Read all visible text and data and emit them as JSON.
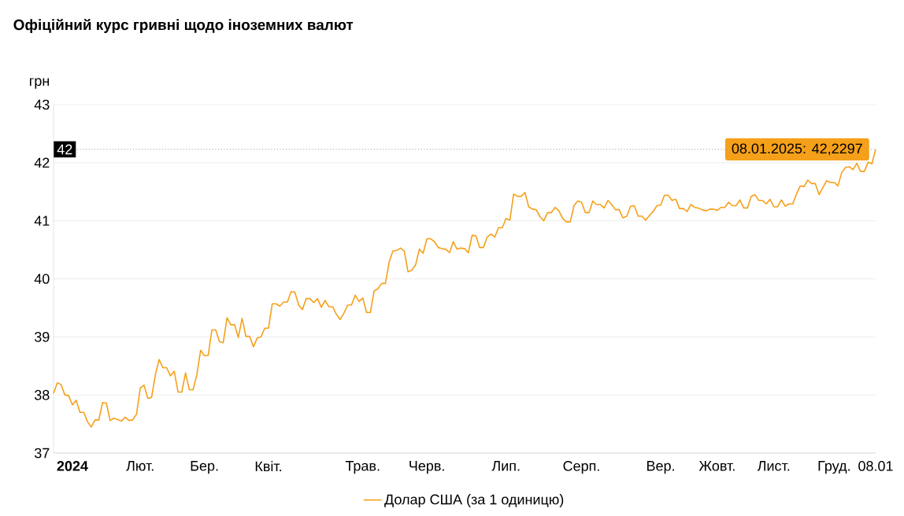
{
  "chart_data": {
    "type": "line",
    "title": "Офіційний курс гривні щодо іноземних валют",
    "ylabel": "грн",
    "ylim": [
      37,
      43
    ],
    "yticks": [
      37,
      38,
      39,
      40,
      41,
      42,
      43
    ],
    "grid": "y",
    "legend": "bottom",
    "categories": [
      null,
      null,
      null,
      null,
      null,
      "**2024**",
      null,
      null,
      null,
      null,
      null,
      null,
      null,
      null,
      null,
      null,
      null,
      null,
      null,
      null,
      null,
      null,
      null,
      "Лют.",
      null,
      null,
      null,
      null,
      null,
      null,
      null,
      null,
      null,
      null,
      null,
      null,
      null,
      null,
      null,
      null,
      "Бер.",
      null,
      null,
      null,
      null,
      null,
      null,
      null,
      null,
      null,
      null,
      null,
      null,
      null,
      null,
      null,
      null,
      "Квіт.",
      null,
      null,
      null,
      null,
      null,
      null,
      null,
      null,
      null,
      null,
      null,
      null,
      null,
      null,
      null,
      null,
      null,
      null,
      null,
      null,
      null,
      null,
      null,
      null,
      "Трав.",
      null,
      null,
      null,
      null,
      null,
      null,
      null,
      null,
      null,
      null,
      null,
      null,
      null,
      null,
      null,
      null,
      "Черв.",
      null,
      null,
      null,
      null,
      null,
      null,
      null,
      null,
      null,
      null,
      null,
      null,
      null,
      null,
      null,
      null,
      null,
      null,
      null,
      null,
      "Лип.",
      null,
      null,
      null,
      null,
      null,
      null,
      null,
      null,
      null,
      null,
      null,
      null,
      null,
      null,
      null,
      null,
      null,
      null,
      null,
      "Серп.",
      null,
      null,
      null,
      null,
      null,
      null,
      null,
      null,
      null,
      null,
      null,
      null,
      null,
      null,
      null,
      null,
      null,
      null,
      null,
      null,
      "Вер.",
      null,
      null,
      null,
      null,
      null,
      null,
      null,
      null,
      null,
      null,
      null,
      null,
      null,
      null,
      "Жовт.",
      null,
      null,
      null,
      null,
      null,
      null,
      null,
      null,
      null,
      null,
      null,
      null,
      null,
      null,
      "Лист.",
      null,
      null,
      null,
      null,
      null,
      null,
      null,
      null,
      null,
      null,
      null,
      null,
      null,
      null,
      null,
      "Груд.",
      null,
      null,
      null,
      null,
      null,
      null,
      null,
      null,
      null,
      null,
      "08.01"
    ],
    "series": [
      {
        "name": "Долар США (за 1 одиницю)",
        "color": "#f5a01a",
        "values": [
          38.03,
          38.21,
          38.18,
          38.0,
          37.99,
          37.83,
          37.91,
          37.7,
          37.7,
          37.54,
          37.45,
          37.57,
          37.57,
          37.87,
          37.86,
          37.56,
          37.6,
          37.58,
          37.55,
          37.62,
          37.56,
          37.57,
          37.67,
          38.12,
          38.17,
          37.94,
          37.96,
          38.35,
          38.61,
          38.47,
          38.47,
          38.33,
          38.41,
          38.05,
          38.05,
          38.38,
          38.09,
          38.09,
          38.35,
          38.77,
          38.68,
          38.68,
          39.12,
          39.12,
          38.92,
          38.9,
          39.33,
          39.21,
          39.21,
          38.99,
          39.32,
          39.01,
          39.01,
          38.83,
          38.98,
          39.0,
          39.15,
          39.15,
          39.57,
          39.57,
          39.53,
          39.6,
          39.6,
          39.78,
          39.77,
          39.55,
          39.47,
          39.66,
          39.66,
          39.59,
          39.66,
          39.51,
          39.63,
          39.52,
          39.52,
          39.39,
          39.3,
          39.41,
          39.55,
          39.55,
          39.72,
          39.61,
          39.67,
          39.42,
          39.42,
          39.79,
          39.83,
          39.92,
          39.92,
          40.29,
          40.48,
          40.49,
          40.53,
          40.48,
          40.12,
          40.15,
          40.24,
          40.51,
          40.44,
          40.69,
          40.69,
          40.64,
          40.54,
          40.52,
          40.51,
          40.45,
          40.64,
          40.51,
          40.53,
          40.52,
          40.45,
          40.75,
          40.74,
          40.54,
          40.54,
          40.72,
          40.77,
          40.72,
          40.88,
          40.88,
          41.04,
          41.01,
          41.46,
          41.42,
          41.42,
          41.49,
          41.24,
          41.2,
          41.19,
          41.07,
          41.0,
          41.14,
          41.14,
          41.23,
          41.17,
          41.04,
          40.98,
          40.98,
          41.26,
          41.34,
          41.32,
          41.14,
          41.14,
          41.34,
          41.28,
          41.28,
          41.22,
          41.35,
          41.28,
          41.19,
          41.19,
          41.05,
          41.08,
          41.25,
          41.26,
          41.08,
          41.08,
          41.01,
          41.09,
          41.16,
          41.26,
          41.27,
          41.44,
          41.44,
          41.35,
          41.37,
          41.21,
          41.21,
          41.16,
          41.28,
          41.23,
          41.22,
          41.19,
          41.17,
          41.2,
          41.2,
          41.18,
          41.23,
          41.23,
          41.32,
          41.26,
          41.26,
          41.36,
          41.22,
          41.22,
          41.42,
          41.45,
          41.35,
          41.35,
          41.29,
          41.37,
          41.24,
          41.24,
          41.36,
          41.25,
          41.29,
          41.29,
          41.46,
          41.6,
          41.59,
          41.7,
          41.64,
          41.64,
          41.45,
          41.57,
          41.69,
          41.66,
          41.66,
          41.6,
          41.83,
          41.92,
          41.93,
          41.88,
          41.99,
          41.85,
          41.85,
          42.01,
          41.98,
          42.2297
        ]
      }
    ],
    "ref_lines": [
      {
        "axis": "y",
        "value": 42.2297,
        "label": "42",
        "color": "#aaaaaa",
        "line_style": "dotted"
      }
    ],
    "annotations": [
      {
        "text": "08.01.2025: 42,2297",
        "x": "08.01",
        "y": 42.2297
      }
    ]
  }
}
